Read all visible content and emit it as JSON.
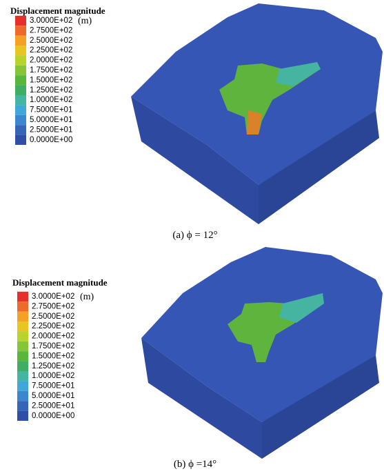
{
  "panels": [
    {
      "legend": {
        "title": "Displacement magnitude",
        "unit": "(m)",
        "entries": [
          {
            "label": "3.0000E+02",
            "color": "#e5312b"
          },
          {
            "label": "2.7500E+02",
            "color": "#ee6a2a"
          },
          {
            "label": "2.5000E+02",
            "color": "#f4a126"
          },
          {
            "label": "2.2500E+02",
            "color": "#e9c524"
          },
          {
            "label": "2.0000E+02",
            "color": "#bcd22c"
          },
          {
            "label": "1.7500E+02",
            "color": "#86c43a"
          },
          {
            "label": "1.5000E+02",
            "color": "#57b63c"
          },
          {
            "label": "1.2500E+02",
            "color": "#3fae62"
          },
          {
            "label": "1.0000E+02",
            "color": "#45b4a0"
          },
          {
            "label": "7.5000E+01",
            "color": "#3fa8d6"
          },
          {
            "label": "5.0000E+01",
            "color": "#3a86cf"
          },
          {
            "label": "2.5000E+01",
            "color": "#3565b8"
          },
          {
            "label": "0.0000E+00",
            "color": "#2f4fa6"
          }
        ]
      },
      "caption": "(a) ϕ = 12°"
    },
    {
      "legend": {
        "title": "Displacement magnitude",
        "unit": "(m)",
        "entries": [
          {
            "label": "3.0000E+02",
            "color": "#e5312b"
          },
          {
            "label": "2.7500E+02",
            "color": "#ee6a2a"
          },
          {
            "label": "2.5000E+02",
            "color": "#f4a126"
          },
          {
            "label": "2.2500E+02",
            "color": "#e9c524"
          },
          {
            "label": "2.0000E+02",
            "color": "#bcd22c"
          },
          {
            "label": "1.7500E+02",
            "color": "#86c43a"
          },
          {
            "label": "1.5000E+02",
            "color": "#57b63c"
          },
          {
            "label": "1.2500E+02",
            "color": "#3fae62"
          },
          {
            "label": "1.0000E+02",
            "color": "#45b4a0"
          },
          {
            "label": "7.5000E+01",
            "color": "#3fa8d6"
          },
          {
            "label": "5.0000E+01",
            "color": "#3a86cf"
          },
          {
            "label": "2.5000E+01",
            "color": "#3565b8"
          },
          {
            "label": "0.0000E+00",
            "color": "#2f4fa6"
          }
        ]
      },
      "caption": "(b) ϕ =14°"
    }
  ]
}
